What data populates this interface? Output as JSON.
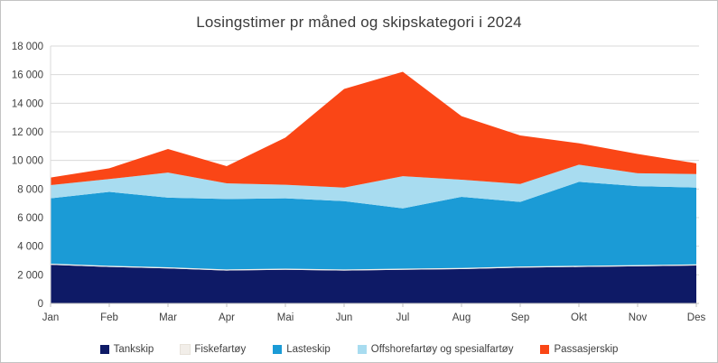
{
  "chart_data": {
    "type": "area",
    "stacked": true,
    "title": "Losingstimer pr måned og skipskategori i 2024",
    "xlabel": "",
    "ylabel": "",
    "ylim": [
      0,
      18000
    ],
    "grid": "horizontal",
    "legend_position": "bottom",
    "categories": [
      "Jan",
      "Feb",
      "Mar",
      "Apr",
      "Mai",
      "Jun",
      "Jul",
      "Aug",
      "Sep",
      "Okt",
      "Nov",
      "Des"
    ],
    "y_ticks": [
      {
        "value": 0,
        "label": "0"
      },
      {
        "value": 2000,
        "label": "2 000"
      },
      {
        "value": 4000,
        "label": "4 000"
      },
      {
        "value": 6000,
        "label": "6 000"
      },
      {
        "value": 8000,
        "label": "8 000"
      },
      {
        "value": 10000,
        "label": "10 000"
      },
      {
        "value": 12000,
        "label": "12 000"
      },
      {
        "value": 14000,
        "label": "14 000"
      },
      {
        "value": 16000,
        "label": "16 000"
      },
      {
        "value": 18000,
        "label": "18 000"
      }
    ],
    "series": [
      {
        "name": "Tankskip",
        "color": "#0e1a66",
        "values": [
          2700,
          2550,
          2450,
          2300,
          2350,
          2300,
          2350,
          2400,
          2500,
          2550,
          2600,
          2650
        ]
      },
      {
        "name": "Fiskefartøy",
        "color": "#f2eee9",
        "values": [
          80,
          80,
          80,
          80,
          80,
          80,
          80,
          80,
          80,
          80,
          80,
          80
        ]
      },
      {
        "name": "Lasteskip",
        "color": "#1b9bd6",
        "values": [
          4570,
          5170,
          4870,
          4920,
          4920,
          4770,
          4220,
          4970,
          4520,
          5870,
          5520,
          5370
        ]
      },
      {
        "name": "Offshorefartøy og spesialfartøy",
        "color": "#a8dcf0",
        "values": [
          920,
          900,
          1750,
          1100,
          950,
          950,
          2250,
          1200,
          1250,
          1200,
          900,
          950
        ]
      },
      {
        "name": "Passasjerskip",
        "color": "#fa4616",
        "values": [
          530,
          750,
          1650,
          1200,
          3300,
          6900,
          7300,
          4450,
          3400,
          1500,
          1350,
          750
        ]
      }
    ],
    "totals": [
      8800,
      9450,
      10800,
      9600,
      11600,
      15000,
      16200,
      13100,
      11750,
      11200,
      10450,
      9800
    ],
    "colors": {
      "grid": "#d9d9d9",
      "axis": "#bfbfbf",
      "tick_text": "#404040",
      "title_text": "#3a3a3a"
    }
  }
}
